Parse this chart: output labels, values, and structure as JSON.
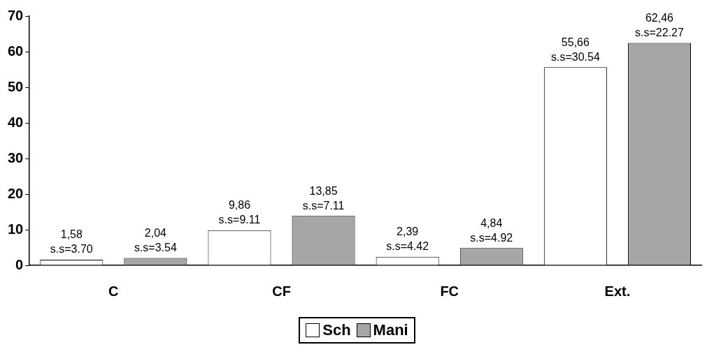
{
  "chart_data": {
    "type": "bar",
    "categories": [
      "C",
      "CF",
      "FC",
      "Ext."
    ],
    "series": [
      {
        "name": "Sch",
        "color": "#ffffff",
        "values": [
          1.58,
          9.86,
          2.39,
          55.66
        ],
        "value_labels": [
          "1,58\ns.s=3.70",
          "9,86\ns.s=9.11",
          "2,39\ns.s=4.42",
          "55,66\ns.s=30.54"
        ]
      },
      {
        "name": "Mani",
        "color": "#a6a6a6",
        "values": [
          2.04,
          13.85,
          4.84,
          62.46
        ],
        "value_labels": [
          "2,04\ns.s=3.54",
          "13,85\ns.s=7.11",
          "4,84\ns.s=4.92",
          "62,46\ns.s=22.27"
        ]
      }
    ],
    "ylim": [
      0,
      70
    ],
    "yticks": [
      0,
      10,
      20,
      30,
      40,
      50,
      60,
      70
    ],
    "grid": false,
    "legend": "bottom"
  }
}
